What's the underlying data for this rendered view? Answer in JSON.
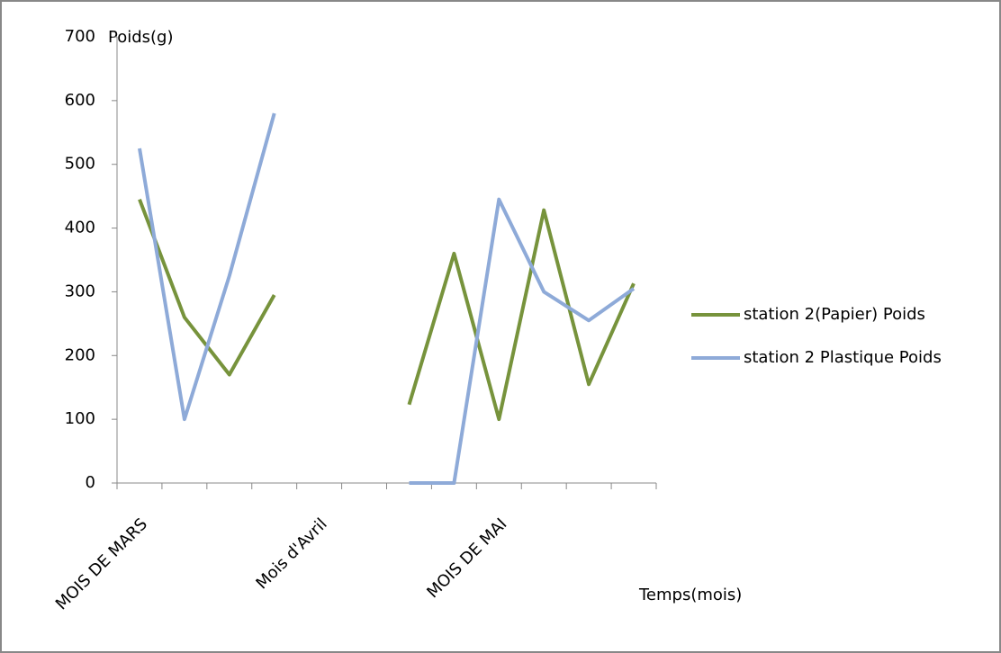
{
  "chart_data": {
    "type": "line",
    "y_label": "Poids(g)",
    "x_label": "Temps(mois)",
    "categories": [
      "MOIS DE MARS",
      null,
      null,
      null,
      "Mois d'Avril",
      null,
      null,
      null,
      "MOIS DE MAI",
      null,
      null,
      null
    ],
    "series": [
      {
        "name": "station 2(Papier) Poids",
        "color": "#77933c",
        "values": [
          445,
          260,
          170,
          295,
          null,
          null,
          123,
          360,
          100,
          428,
          155,
          313
        ]
      },
      {
        "name": "station 2 Plastique Poids",
        "color": "#8eaad8",
        "values": [
          525,
          100,
          325,
          580,
          null,
          null,
          0,
          0,
          445,
          300,
          255,
          305
        ]
      }
    ],
    "ylim": [
      0,
      700
    ],
    "yticks": [
      0,
      100,
      200,
      300,
      400,
      500,
      600,
      700
    ],
    "grid": false,
    "legend": "right"
  }
}
